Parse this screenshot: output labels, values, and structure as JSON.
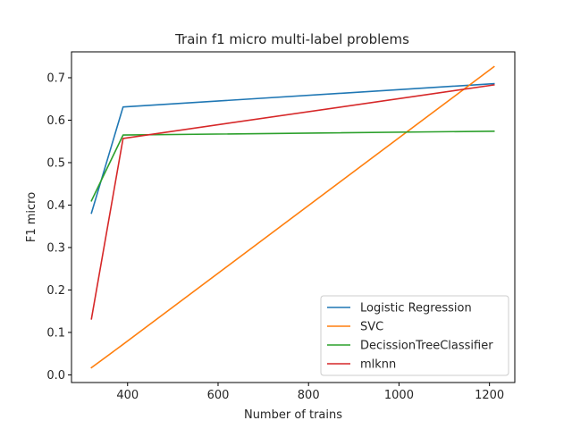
{
  "chart_data": {
    "type": "line",
    "title": "Train f1 micro multi-label problems",
    "xlabel": "Number of trains",
    "ylabel": "F1 micro",
    "xlim": [
      276,
      1256
    ],
    "ylim": [
      -0.018,
      0.761
    ],
    "xticks": [
      400,
      600,
      800,
      1000,
      1200
    ],
    "yticks": [
      0.0,
      0.1,
      0.2,
      0.3,
      0.4,
      0.5,
      0.6,
      0.7
    ],
    "xtick_labels": [
      "400",
      "600",
      "800",
      "1000",
      "1200"
    ],
    "ytick_labels": [
      "0.0",
      "0.1",
      "0.2",
      "0.3",
      "0.4",
      "0.5",
      "0.6",
      "0.7"
    ],
    "grid": false,
    "legend_position": "lower-right",
    "series": [
      {
        "name": "Logistic Regression",
        "color": "#1f77b4",
        "x": [
          320,
          390,
          1210
        ],
        "y": [
          0.381,
          0.631,
          0.686
        ]
      },
      {
        "name": "SVC",
        "color": "#ff7f0e",
        "x": [
          320,
          390,
          1210
        ],
        "y": [
          0.017,
          0.072,
          0.726
        ]
      },
      {
        "name": "DecissionTreeClassifier",
        "color": "#2ca02c",
        "x": [
          320,
          390,
          1210
        ],
        "y": [
          0.41,
          0.565,
          0.574
        ]
      },
      {
        "name": "mlknn",
        "color": "#d62728",
        "x": [
          320,
          390,
          1210
        ],
        "y": [
          0.132,
          0.557,
          0.683
        ]
      }
    ]
  }
}
